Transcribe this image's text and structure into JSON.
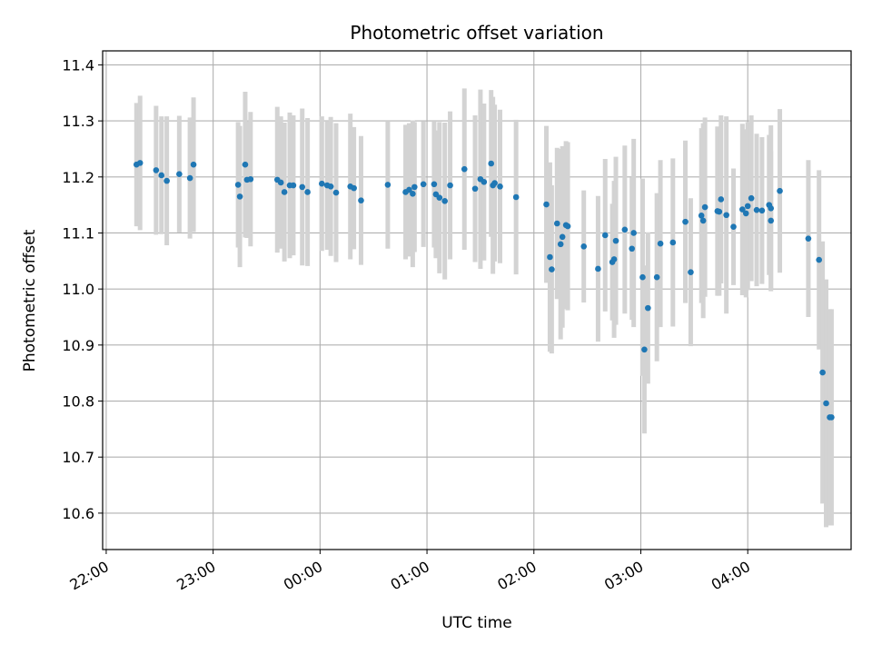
{
  "chart_data": {
    "type": "scatter",
    "title": "Photometric offset variation",
    "xlabel": "UTC time",
    "ylabel": "Photometric offset",
    "x_ticks": [
      "22:00",
      "23:00",
      "00:00",
      "01:00",
      "02:00",
      "03:00",
      "04:00"
    ],
    "y_ticks": [
      "10.6",
      "10.7",
      "10.8",
      "10.9",
      "11.0",
      "11.1",
      "11.2",
      "11.3",
      "11.4"
    ],
    "xlim": [
      "21:58",
      "04:58"
    ],
    "ylim": [
      10.535,
      11.425
    ],
    "grid": true,
    "colors": {
      "points": "#1f77b4",
      "error_bars": "#d3d3d3",
      "grid": "#b0b0b0"
    },
    "series": [
      {
        "x": [
          "22:17",
          "22:19",
          "22:28",
          "22:31",
          "22:34",
          "22:41",
          "22:47",
          "22:49",
          "23:14",
          "23:15",
          "23:18",
          "23:19",
          "23:21",
          "23:36",
          "23:38",
          "23:40",
          "23:43",
          "23:45",
          "23:50",
          "23:53",
          "24:01",
          "24:04",
          "24:06",
          "24:09",
          "24:17",
          "24:19",
          "24:23",
          "24:38",
          "24:48",
          "24:50",
          "24:52",
          "24:53",
          "24:58",
          "25:04",
          "25:05",
          "25:07",
          "25:10",
          "25:13",
          "25:21",
          "25:27",
          "25:30",
          "25:32",
          "25:36",
          "25:37",
          "25:38",
          "25:41",
          "25:50",
          "26:07",
          "26:09",
          "26:10",
          "26:13",
          "26:15",
          "26:16",
          "26:18",
          "26:19",
          "26:28",
          "26:36",
          "26:40",
          "26:44",
          "26:45",
          "26:46",
          "26:51",
          "26:55",
          "26:56",
          "27:01",
          "27:02",
          "27:04",
          "27:09",
          "27:11",
          "27:18",
          "27:25",
          "27:28",
          "27:34",
          "27:35",
          "27:36",
          "27:43",
          "27:44",
          "27:45",
          "27:48",
          "27:52",
          "27:57",
          "27:59",
          "28:00",
          "28:02",
          "28:05",
          "28:08",
          "28:12",
          "28:13",
          "28:13",
          "28:18",
          "28:34",
          "28:40",
          "28:42",
          "28:44",
          "28:46",
          "28:47"
        ],
        "y": [
          11.222,
          11.225,
          11.212,
          11.203,
          11.193,
          11.205,
          11.198,
          11.222,
          11.186,
          11.165,
          11.222,
          11.195,
          11.196,
          11.195,
          11.19,
          11.173,
          11.185,
          11.185,
          11.182,
          11.173,
          11.188,
          11.185,
          11.183,
          11.172,
          11.183,
          11.18,
          11.158,
          11.186,
          11.173,
          11.177,
          11.17,
          11.182,
          11.187,
          11.187,
          11.169,
          11.163,
          11.157,
          11.185,
          11.214,
          11.179,
          11.196,
          11.191,
          11.224,
          11.185,
          11.189,
          11.183,
          11.164,
          11.151,
          11.057,
          11.035,
          11.117,
          11.08,
          11.093,
          11.114,
          11.112,
          11.076,
          11.036,
          11.096,
          11.048,
          11.053,
          11.086,
          11.106,
          11.072,
          11.1,
          11.021,
          10.892,
          10.966,
          11.021,
          11.081,
          11.083,
          11.12,
          11.03,
          11.131,
          11.122,
          11.146,
          11.139,
          11.138,
          11.16,
          11.132,
          11.111,
          11.142,
          11.135,
          11.148,
          11.162,
          11.141,
          11.14,
          11.15,
          11.144,
          11.122,
          11.175,
          11.09,
          11.052,
          10.851,
          10.796,
          10.771,
          10.771
        ],
        "err": [
          0.11,
          0.12,
          0.115,
          0.105,
          0.115,
          0.104,
          0.108,
          0.12,
          0.112,
          0.126,
          0.13,
          0.104,
          0.12,
          0.13,
          0.118,
          0.124,
          0.13,
          0.125,
          0.14,
          0.132,
          0.12,
          0.115,
          0.124,
          0.124,
          0.13,
          0.109,
          0.115,
          0.114,
          0.12,
          0.119,
          0.131,
          0.116,
          0.112,
          0.113,
          0.114,
          0.135,
          0.14,
          0.132,
          0.144,
          0.131,
          0.16,
          0.14,
          0.131,
          0.158,
          0.14,
          0.137,
          0.138,
          0.14,
          0.169,
          0.15,
          0.135,
          0.17,
          0.162,
          0.15,
          0.15,
          0.1,
          0.13,
          0.136,
          0.104,
          0.14,
          0.15,
          0.15,
          0.127,
          0.168,
          0.176,
          0.15,
          0.135,
          0.15,
          0.149,
          0.15,
          0.145,
          0.132,
          0.156,
          0.174,
          0.16,
          0.151,
          0.15,
          0.15,
          0.176,
          0.104,
          0.153,
          0.15,
          0.15,
          0.148,
          0.136,
          0.131,
          0.125,
          0.148,
          0.124,
          0.146,
          0.14,
          0.16,
          0.234,
          0.221,
          0.193,
          0.193
        ]
      }
    ]
  }
}
